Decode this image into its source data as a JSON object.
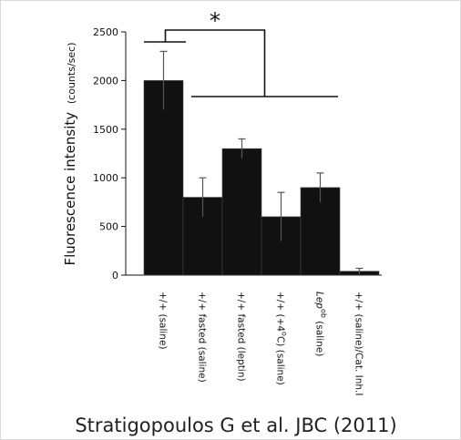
{
  "chart_data": {
    "type": "bar",
    "ylabel": "Fluorescence intensity",
    "ylabel_unit": "(counts/sec)",
    "ylim": [
      0,
      2500
    ],
    "yticks": [
      "0",
      "500",
      "1000",
      "1500",
      "2000",
      "2500"
    ],
    "categories": [
      {
        "label": "+/+ (saline)"
      },
      {
        "label": "+/+ fasted (saline)"
      },
      {
        "label": "+/+ fasted (leptin)"
      },
      {
        "label": "+/+ (+4",
        "sup": "o",
        "after": "C) (saline)"
      },
      {
        "prefix": "Lep",
        "sup": "ob",
        "after": " (saline)",
        "italic_prefix": true
      },
      {
        "label": "+/+ (saline)/Cat. Inh.I"
      }
    ],
    "values": [
      2000,
      800,
      1300,
      600,
      900,
      40
    ],
    "errors": [
      300,
      200,
      100,
      250,
      150,
      30
    ],
    "bar_color": "#111111",
    "significance": "*",
    "grid": false
  },
  "source": "Stratigopoulos G et al. JBC (2011)"
}
